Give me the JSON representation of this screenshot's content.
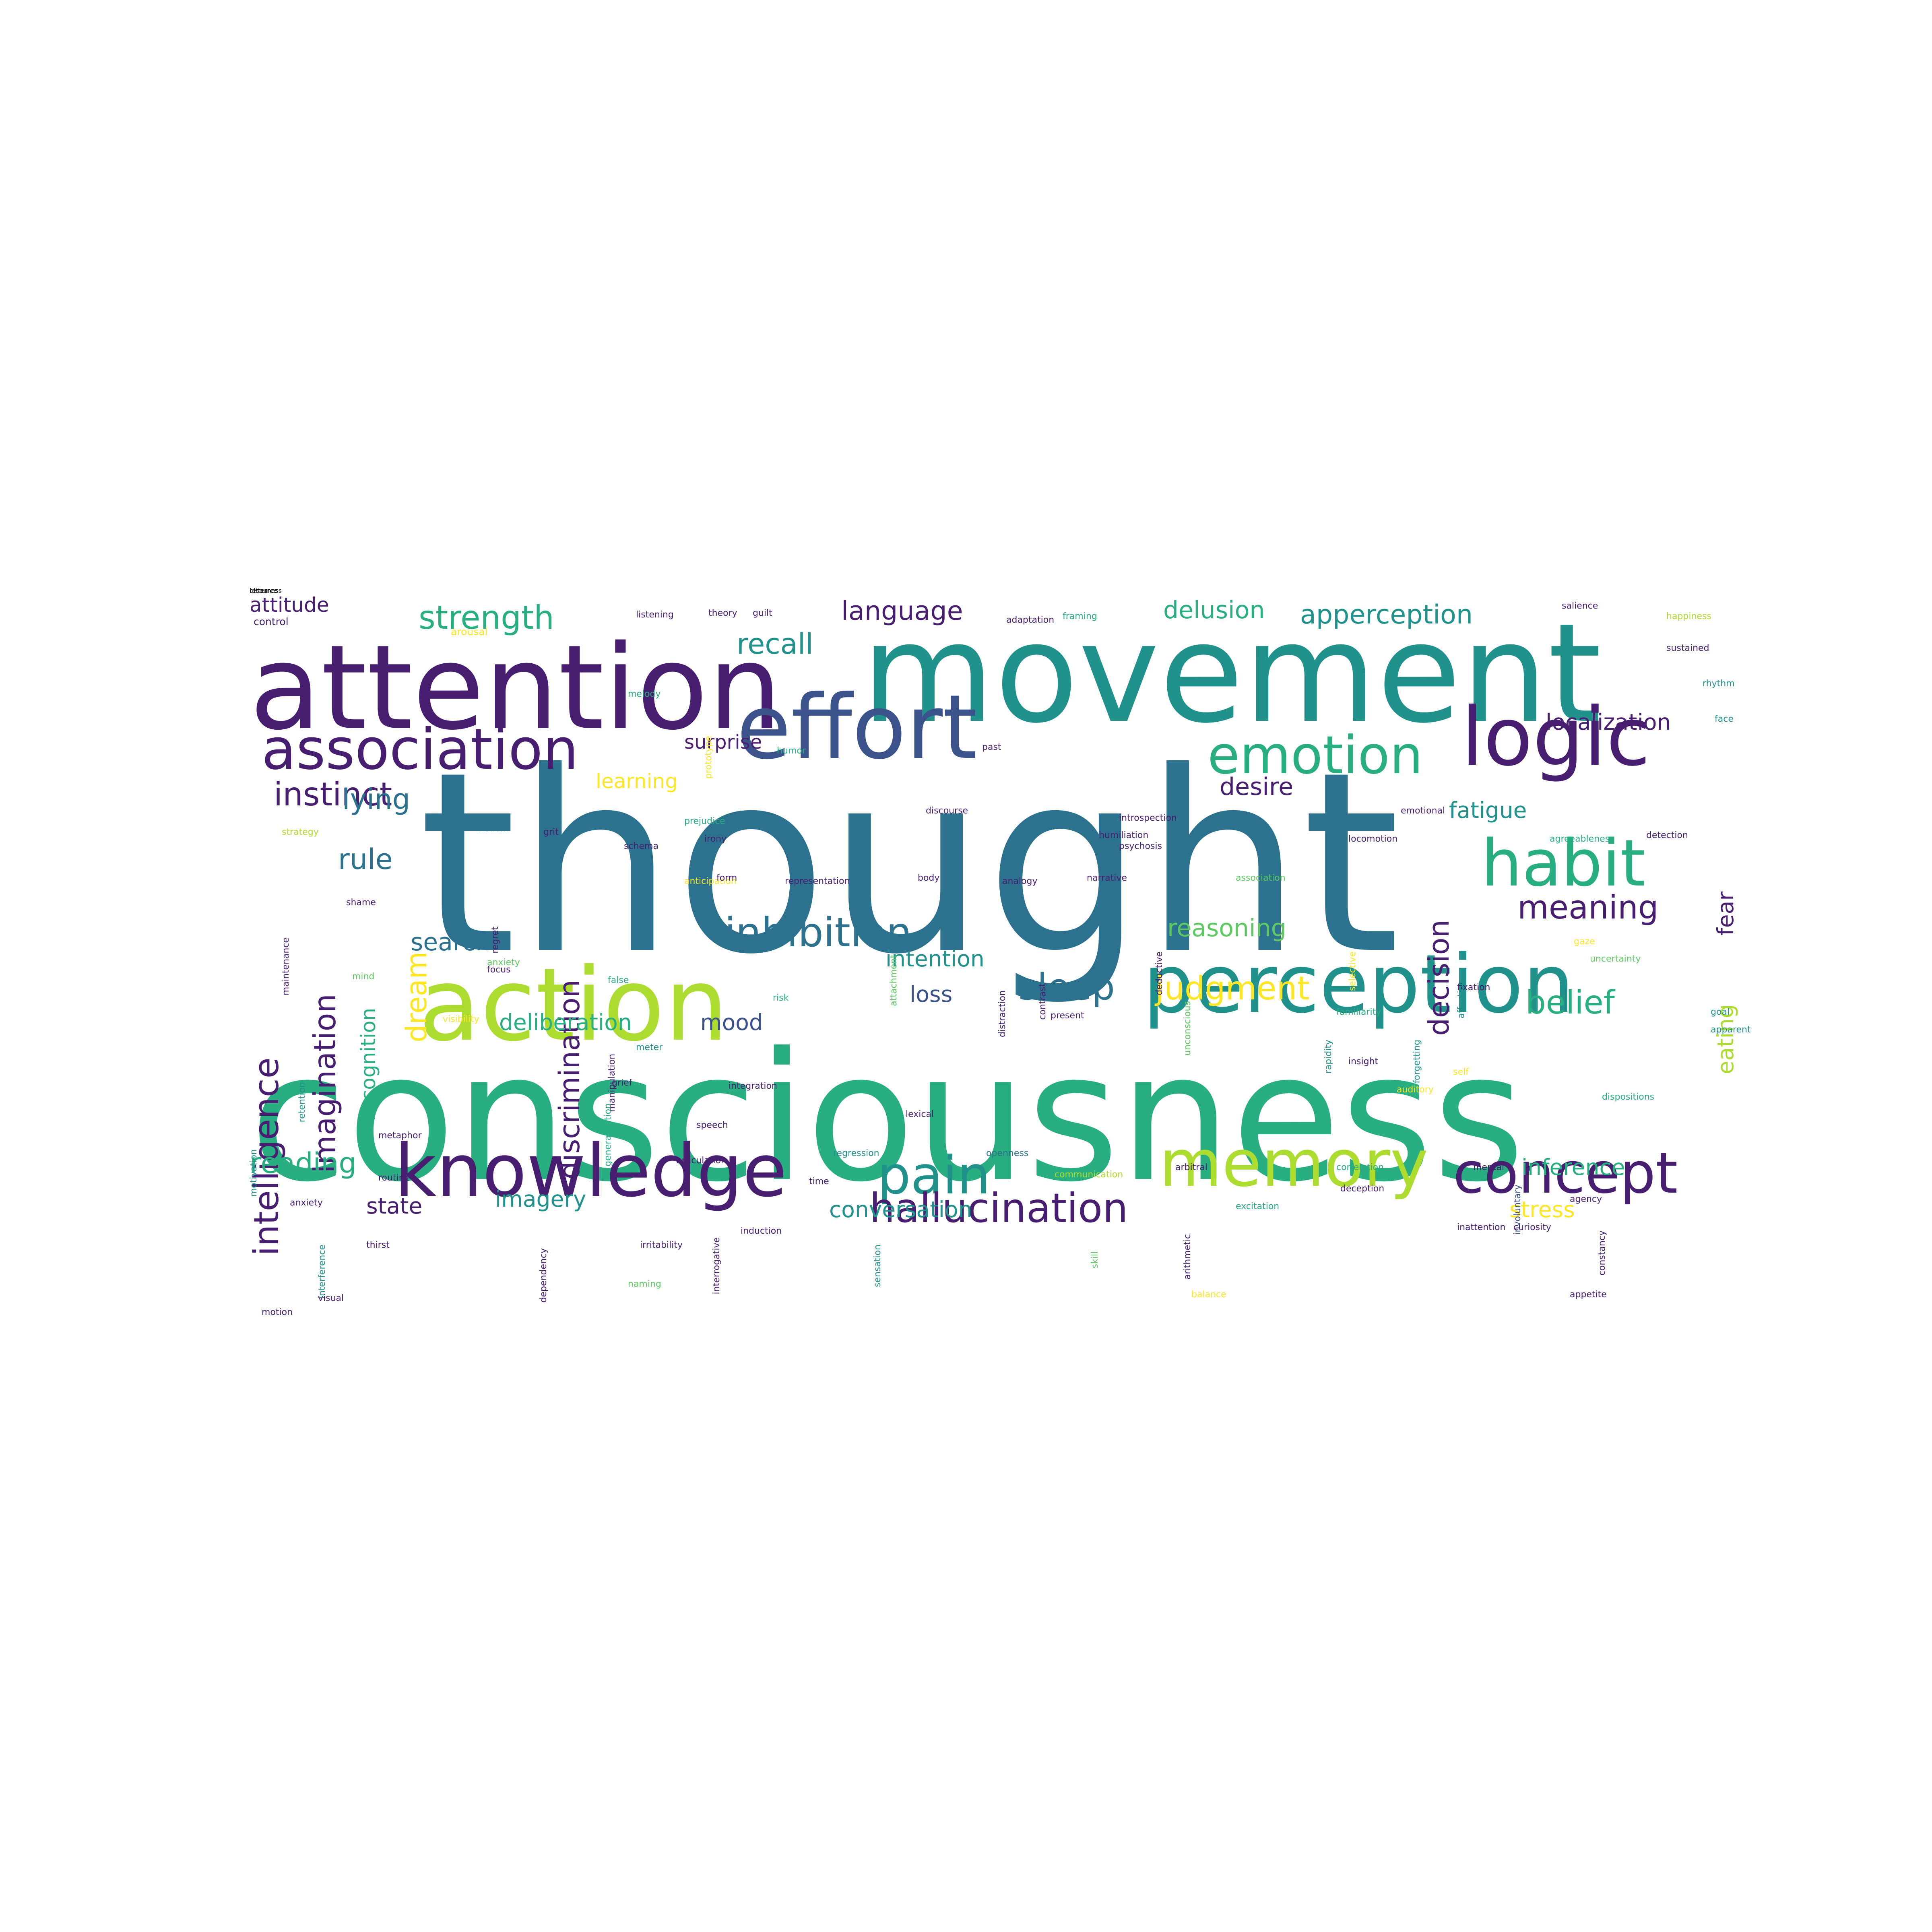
{
  "palette": {
    "p": "#481f70",
    "i": "#3b528b",
    "t": "#2c728e",
    "g": "#21918c",
    "m": "#28ae80",
    "l": "#5ec962",
    "y": "#addc30",
    "Y": "#fde725"
  },
  "words": [
    {
      "text": "thought",
      "color": "t",
      "vertical": false
    },
    {
      "text": "consciousness",
      "color": "m",
      "vertical": false
    },
    {
      "text": "movement",
      "color": "g",
      "vertical": false
    },
    {
      "text": "attention",
      "color": "p",
      "vertical": false
    },
    {
      "text": "action",
      "color": "y",
      "vertical": false
    },
    {
      "text": "effort",
      "color": "i",
      "vertical": false
    },
    {
      "text": "perception",
      "color": "g",
      "vertical": false
    },
    {
      "text": "logic",
      "color": "p",
      "vertical": false
    },
    {
      "text": "knowledge",
      "color": "p",
      "vertical": false
    },
    {
      "text": "habit",
      "color": "m",
      "vertical": false
    },
    {
      "text": "memory",
      "color": "y",
      "vertical": false
    },
    {
      "text": "association",
      "color": "p",
      "vertical": false
    },
    {
      "text": "emotion",
      "color": "m",
      "vertical": false
    },
    {
      "text": "pain",
      "color": "g",
      "vertical": false
    },
    {
      "text": "concept",
      "color": "p",
      "vertical": false
    },
    {
      "text": "inhibition",
      "color": "t",
      "vertical": false
    },
    {
      "text": "hallucination",
      "color": "p",
      "vertical": false
    },
    {
      "text": "intelligence",
      "color": "p",
      "vertical": true
    },
    {
      "text": "imagination",
      "color": "p",
      "vertical": true
    },
    {
      "text": "instinct",
      "color": "p",
      "vertical": false
    },
    {
      "text": "sleep",
      "color": "t",
      "vertical": false
    },
    {
      "text": "judgment",
      "color": "Y",
      "vertical": false
    },
    {
      "text": "belief",
      "color": "m",
      "vertical": false
    },
    {
      "text": "meaning",
      "color": "p",
      "vertical": false
    },
    {
      "text": "decision",
      "color": "p",
      "vertical": true
    },
    {
      "text": "strength",
      "color": "m",
      "vertical": false
    },
    {
      "text": "apperception",
      "color": "g",
      "vertical": false
    },
    {
      "text": "language",
      "color": "p",
      "vertical": false
    },
    {
      "text": "recall",
      "color": "g",
      "vertical": false
    },
    {
      "text": "delusion",
      "color": "m",
      "vertical": false
    },
    {
      "text": "localization",
      "color": "p",
      "vertical": false
    },
    {
      "text": "desire",
      "color": "p",
      "vertical": false
    },
    {
      "text": "fatigue",
      "color": "g",
      "vertical": false
    },
    {
      "text": "fear",
      "color": "p",
      "vertical": true
    },
    {
      "text": "dream",
      "color": "Y",
      "vertical": true
    },
    {
      "text": "lying",
      "color": "t",
      "vertical": false
    },
    {
      "text": "rule",
      "color": "t",
      "vertical": false
    },
    {
      "text": "discrimination",
      "color": "p",
      "vertical": true
    },
    {
      "text": "reasoning",
      "color": "l",
      "vertical": false
    },
    {
      "text": "search",
      "color": "t",
      "vertical": false
    },
    {
      "text": "recognition",
      "color": "m",
      "vertical": true
    },
    {
      "text": "intention",
      "color": "g",
      "vertical": false
    },
    {
      "text": "loss",
      "color": "i",
      "vertical": false
    },
    {
      "text": "deliberation",
      "color": "m",
      "vertical": false
    },
    {
      "text": "mood",
      "color": "i",
      "vertical": false
    },
    {
      "text": "reading",
      "color": "m",
      "vertical": false
    },
    {
      "text": "state",
      "color": "p",
      "vertical": false
    },
    {
      "text": "imagery",
      "color": "g",
      "vertical": false
    },
    {
      "text": "conversation",
      "color": "g",
      "vertical": false
    },
    {
      "text": "inference",
      "color": "m",
      "vertical": false
    },
    {
      "text": "stress",
      "color": "Y",
      "vertical": false
    },
    {
      "text": "eating",
      "color": "y",
      "vertical": true
    },
    {
      "text": "attitude",
      "color": "p",
      "vertical": false
    },
    {
      "text": "surprise",
      "color": "p",
      "vertical": false
    },
    {
      "text": "learning",
      "color": "Y",
      "vertical": false
    },
    {
      "text": "control",
      "color": "p",
      "vertical": false
    },
    {
      "text": "arousal",
      "color": "Y",
      "vertical": false
    },
    {
      "text": "listening",
      "color": "p",
      "vertical": false
    },
    {
      "text": "theory",
      "color": "p",
      "vertical": false
    },
    {
      "text": "guilt",
      "color": "p",
      "vertical": false
    },
    {
      "text": "prototype",
      "color": "Y",
      "vertical": true
    },
    {
      "text": "adaptation",
      "color": "p",
      "vertical": false
    },
    {
      "text": "framing",
      "color": "m",
      "vertical": false
    },
    {
      "text": "salience",
      "color": "p",
      "vertical": false
    },
    {
      "text": "happiness",
      "color": "y",
      "vertical": false
    },
    {
      "text": "sustained",
      "color": "p",
      "vertical": false
    },
    {
      "text": "rhythm",
      "color": "g",
      "vertical": false
    },
    {
      "text": "face",
      "color": "g",
      "vertical": false
    },
    {
      "text": "melody",
      "color": "m",
      "vertical": false
    },
    {
      "text": "humor",
      "color": "m",
      "vertical": false
    },
    {
      "text": "past",
      "color": "p",
      "vertical": false
    },
    {
      "text": "discourse",
      "color": "p",
      "vertical": false
    },
    {
      "text": "prejudice",
      "color": "m",
      "vertical": false
    },
    {
      "text": "introspection",
      "color": "p",
      "vertical": false
    },
    {
      "text": "emotional",
      "color": "p",
      "vertical": false
    },
    {
      "text": "agreeableness",
      "color": "m",
      "vertical": false
    },
    {
      "text": "detection",
      "color": "p",
      "vertical": false
    },
    {
      "text": "wisdom",
      "color": "t",
      "vertical": false
    },
    {
      "text": "grit",
      "color": "p",
      "vertical": false
    },
    {
      "text": "strategy",
      "color": "y",
      "vertical": false
    },
    {
      "text": "irony",
      "color": "p",
      "vertical": false
    },
    {
      "text": "schema",
      "color": "p",
      "vertical": false
    },
    {
      "text": "psychosis",
      "color": "p",
      "vertical": false
    },
    {
      "text": "humiliation",
      "color": "p",
      "vertical": false
    },
    {
      "text": "locomotion",
      "color": "p",
      "vertical": false
    },
    {
      "text": "anticipation",
      "color": "Y",
      "vertical": false
    },
    {
      "text": "representation",
      "color": "p",
      "vertical": false
    },
    {
      "text": "body",
      "color": "p",
      "vertical": false
    },
    {
      "text": "analogy",
      "color": "p",
      "vertical": false
    },
    {
      "text": "narrative",
      "color": "p",
      "vertical": false
    },
    {
      "text": "association",
      "color": "l",
      "vertical": false
    },
    {
      "text": "shame",
      "color": "p",
      "vertical": false
    },
    {
      "text": "maintenance",
      "color": "p",
      "vertical": true
    },
    {
      "text": "regret",
      "color": "p",
      "vertical": true
    },
    {
      "text": "form",
      "color": "p",
      "vertical": false
    },
    {
      "text": "anxiety",
      "color": "l",
      "vertical": false
    },
    {
      "text": "focus",
      "color": "p",
      "vertical": false
    },
    {
      "text": "mind",
      "color": "l",
      "vertical": false
    },
    {
      "text": "gaze",
      "color": "Y",
      "vertical": false
    },
    {
      "text": "uncertainty",
      "color": "l",
      "vertical": false
    },
    {
      "text": "fixation",
      "color": "p",
      "vertical": false
    },
    {
      "text": "false",
      "color": "m",
      "vertical": false
    },
    {
      "text": "risk",
      "color": "m",
      "vertical": false
    },
    {
      "text": "attachment",
      "color": "l",
      "vertical": true
    },
    {
      "text": "distraction",
      "color": "p",
      "vertical": true
    },
    {
      "text": "contrast",
      "color": "p",
      "vertical": true
    },
    {
      "text": "deductive",
      "color": "p",
      "vertical": true
    },
    {
      "text": "unconscious",
      "color": "l",
      "vertical": true
    },
    {
      "text": "present",
      "color": "p",
      "vertical": false
    },
    {
      "text": "familiarity",
      "color": "m",
      "vertical": false
    },
    {
      "text": "selective",
      "color": "Y",
      "vertical": true
    },
    {
      "text": "rapidity",
      "color": "g",
      "vertical": true
    },
    {
      "text": "insight",
      "color": "p",
      "vertical": false
    },
    {
      "text": "affection",
      "color": "g",
      "vertical": true
    },
    {
      "text": "goal",
      "color": "g",
      "vertical": false
    },
    {
      "text": "apparent",
      "color": "g",
      "vertical": false
    },
    {
      "text": "forgetting",
      "color": "g",
      "vertical": true
    },
    {
      "text": "self",
      "color": "Y",
      "vertical": false
    },
    {
      "text": "meter",
      "color": "g",
      "vertical": false
    },
    {
      "text": "grief",
      "color": "p",
      "vertical": false
    },
    {
      "text": "integration",
      "color": "p",
      "vertical": false
    },
    {
      "text": "manipulation",
      "color": "p",
      "vertical": true
    },
    {
      "text": "visibility",
      "color": "Y",
      "vertical": false
    },
    {
      "text": "retention",
      "color": "g",
      "vertical": true
    },
    {
      "text": "generalization",
      "color": "m",
      "vertical": true
    },
    {
      "text": "auditory",
      "color": "Y",
      "vertical": false
    },
    {
      "text": "dispositions",
      "color": "m",
      "vertical": false
    },
    {
      "text": "lexical",
      "color": "p",
      "vertical": false
    },
    {
      "text": "openness",
      "color": "t",
      "vertical": false
    },
    {
      "text": "metaphor",
      "color": "p",
      "vertical": false
    },
    {
      "text": "regression",
      "color": "g",
      "vertical": false
    },
    {
      "text": "mental",
      "color": "p",
      "vertical": false
    },
    {
      "text": "anxiety",
      "color": "p",
      "vertical": false
    },
    {
      "text": "routine",
      "color": "p",
      "vertical": false
    },
    {
      "text": "time",
      "color": "p",
      "vertical": false
    },
    {
      "text": "communication",
      "color": "y",
      "vertical": false
    },
    {
      "text": "arbitral",
      "color": "p",
      "vertical": false
    },
    {
      "text": "correlation",
      "color": "m",
      "vertical": false
    },
    {
      "text": "deception",
      "color": "p",
      "vertical": false
    },
    {
      "text": "involuntary",
      "color": "i",
      "vertical": true
    },
    {
      "text": "agency",
      "color": "p",
      "vertical": false
    },
    {
      "text": "speech",
      "color": "p",
      "vertical": false
    },
    {
      "text": "articulation",
      "color": "p",
      "vertical": false
    },
    {
      "text": "induction",
      "color": "p",
      "vertical": false
    },
    {
      "text": "interrogative",
      "color": "p",
      "vertical": true
    },
    {
      "text": "arithmetic",
      "color": "p",
      "vertical": true
    },
    {
      "text": "excitation",
      "color": "m",
      "vertical": false
    },
    {
      "text": "curiosity",
      "color": "p",
      "vertical": false
    },
    {
      "text": "constancy",
      "color": "p",
      "vertical": true
    },
    {
      "text": "interference",
      "color": "g",
      "vertical": true
    },
    {
      "text": "motivation",
      "color": "g",
      "vertical": true
    },
    {
      "text": "sensation",
      "color": "g",
      "vertical": true
    },
    {
      "text": "dependency",
      "color": "p",
      "vertical": true
    },
    {
      "text": "skill",
      "color": "l",
      "vertical": true
    },
    {
      "text": "irritability",
      "color": "p",
      "vertical": false
    },
    {
      "text": "thirst",
      "color": "p",
      "vertical": false
    },
    {
      "text": "naming",
      "color": "l",
      "vertical": false
    },
    {
      "text": "inattention",
      "color": "p",
      "vertical": false
    },
    {
      "text": "visual",
      "color": "p",
      "vertical": false
    },
    {
      "text": "balance",
      "color": "Y",
      "vertical": false
    },
    {
      "text": "motion",
      "color": "p",
      "vertical": false
    },
    {
      "text": "appetite",
      "color": "p",
      "vertical": false
    },
    {
      "text": "resource",
      "color": "p",
      "vertical": false
    },
    {
      "text": "bitterness",
      "color": "p",
      "vertical": false
    }
  ]
}
